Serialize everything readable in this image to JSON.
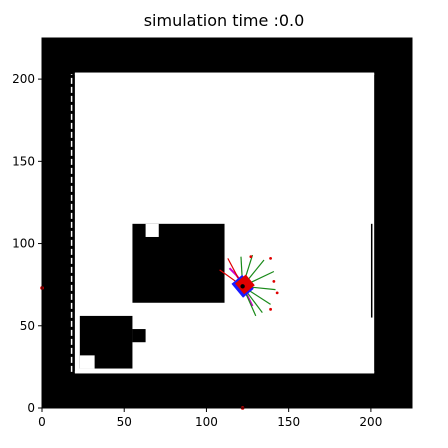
{
  "title": "simulation time :0.0",
  "chart_data": {
    "type": "heatmap",
    "title": "simulation time :0.0",
    "xlim": [
      0,
      225
    ],
    "ylim": [
      0,
      225
    ],
    "xticks": [
      0,
      50,
      100,
      150,
      200
    ],
    "yticks": [
      0,
      50,
      100,
      150,
      200
    ],
    "colors": {
      "wall": "#000000",
      "free": "#ffffff",
      "robot": "#e00000",
      "heading": "#1a1aff",
      "trajectory": "#cc00cc",
      "laser_hit": "#e00000",
      "laser_ray": "#1a8a1a"
    },
    "obstacles": [
      {
        "name": "outer-wall-left",
        "x0": 0,
        "y0": 0,
        "x1": 20,
        "y1": 225
      },
      {
        "name": "outer-wall-right",
        "x0": 202,
        "y0": 0,
        "x1": 225,
        "y1": 225
      },
      {
        "name": "outer-wall-top",
        "x0": 0,
        "y0": 204,
        "x1": 225,
        "y1": 225
      },
      {
        "name": "outer-wall-bottom",
        "x0": 0,
        "y0": 0,
        "x1": 225,
        "y1": 21
      },
      {
        "name": "block-center",
        "x0": 55,
        "y0": 64,
        "x1": 111,
        "y1": 112
      },
      {
        "name": "block-bottom-left",
        "x0": 23,
        "y0": 24,
        "x1": 55,
        "y1": 56
      },
      {
        "name": "block-bottom-left-tab",
        "x0": 55,
        "y0": 40,
        "x1": 63,
        "y1": 48
      }
    ],
    "free_notches": [
      {
        "name": "center-block-notch",
        "x0": 63,
        "y0": 104,
        "x1": 71,
        "y1": 112
      },
      {
        "name": "bottom-left-notch",
        "x0": 23,
        "y0": 24,
        "x1": 32,
        "y1": 32
      }
    ],
    "robot": {
      "x": 122,
      "y": 74,
      "heading_deg": 40
    },
    "trajectory": [
      [
        114,
        85
      ],
      [
        118,
        81
      ],
      [
        121,
        77
      ],
      [
        122,
        74
      ],
      [
        124,
        70
      ],
      [
        126,
        66
      ],
      [
        128,
        62
      ]
    ],
    "laser_hits": [
      [
        127,
        92
      ],
      [
        139,
        91
      ],
      [
        141,
        77
      ],
      [
        143,
        70
      ],
      [
        139,
        60
      ]
    ],
    "laser_ray_ends": [
      [
        121,
        92
      ],
      [
        128,
        93
      ],
      [
        135,
        90
      ],
      [
        141,
        83
      ],
      [
        142,
        72
      ],
      [
        139,
        63
      ],
      [
        134,
        58
      ],
      [
        130,
        56
      ]
    ],
    "stray_points": [
      [
        0,
        73
      ],
      [
        122,
        0
      ]
    ]
  }
}
